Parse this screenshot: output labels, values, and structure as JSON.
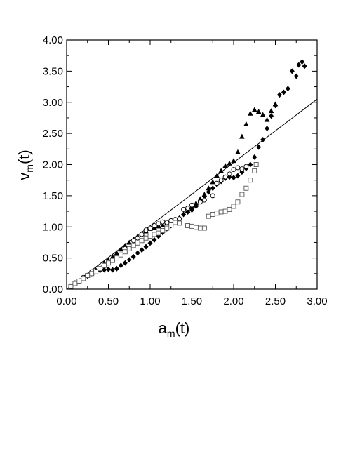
{
  "chart_data": {
    "type": "scatter",
    "title": "",
    "xlabel_main": "a",
    "xlabel_sub": "m",
    "xlabel_tail": "(t)",
    "ylabel_main": "v",
    "ylabel_sub": "m",
    "ylabel_tail": "(t)",
    "xlim": [
      0,
      3
    ],
    "ylim": [
      0,
      4
    ],
    "x_ticks": [
      "0.00",
      "0.50",
      "1.00",
      "1.50",
      "2.00",
      "2.50",
      "3.00"
    ],
    "y_ticks": [
      "0.00",
      "0.50",
      "1.00",
      "1.50",
      "2.00",
      "2.50",
      "3.00",
      "3.50",
      "4.00"
    ],
    "grid": false,
    "reference_line": {
      "x": [
        0,
        3.0
      ],
      "y": [
        0,
        3.05
      ]
    },
    "series": [
      {
        "marker": "diamond-filled",
        "points": [
          [
            0.05,
            0.04
          ],
          [
            0.1,
            0.09
          ],
          [
            0.15,
            0.13
          ],
          [
            0.2,
            0.17
          ],
          [
            0.25,
            0.21
          ],
          [
            0.3,
            0.25
          ],
          [
            0.35,
            0.28
          ],
          [
            0.4,
            0.3
          ],
          [
            0.45,
            0.31
          ],
          [
            0.5,
            0.32
          ],
          [
            0.55,
            0.31
          ],
          [
            0.6,
            0.33
          ],
          [
            0.65,
            0.38
          ],
          [
            0.7,
            0.42
          ],
          [
            0.75,
            0.47
          ],
          [
            0.8,
            0.52
          ],
          [
            0.85,
            0.58
          ],
          [
            0.9,
            0.63
          ],
          [
            0.95,
            0.68
          ],
          [
            1.0,
            0.74
          ],
          [
            1.05,
            0.79
          ],
          [
            1.1,
            0.85
          ],
          [
            1.15,
            0.91
          ],
          [
            1.2,
            0.97
          ],
          [
            1.25,
            1.02
          ],
          [
            1.3,
            1.08
          ],
          [
            1.35,
            1.14
          ],
          [
            1.4,
            1.2
          ],
          [
            1.45,
            1.24
          ],
          [
            1.5,
            1.27
          ],
          [
            1.55,
            1.33
          ],
          [
            1.6,
            1.41
          ],
          [
            1.65,
            1.49
          ],
          [
            1.7,
            1.56
          ],
          [
            1.75,
            1.62
          ],
          [
            1.8,
            1.68
          ],
          [
            1.85,
            1.73
          ],
          [
            1.9,
            1.78
          ],
          [
            1.95,
            1.8
          ],
          [
            2.0,
            1.79
          ],
          [
            2.05,
            1.82
          ],
          [
            2.1,
            1.88
          ],
          [
            2.15,
            1.94
          ],
          [
            2.2,
            2.0
          ],
          [
            2.25,
            2.12
          ],
          [
            2.3,
            2.28
          ],
          [
            2.35,
            2.4
          ],
          [
            2.4,
            2.58
          ],
          [
            2.45,
            2.78
          ],
          [
            2.5,
            2.95
          ],
          [
            2.55,
            3.12
          ],
          [
            2.6,
            3.16
          ],
          [
            2.65,
            3.22
          ],
          [
            2.7,
            3.5
          ],
          [
            2.75,
            3.42
          ],
          [
            2.78,
            3.6
          ],
          [
            2.82,
            3.65
          ],
          [
            2.85,
            3.58
          ]
        ]
      },
      {
        "marker": "triangle-filled",
        "points": [
          [
            0.05,
            0.05
          ],
          [
            0.1,
            0.1
          ],
          [
            0.15,
            0.14
          ],
          [
            0.2,
            0.18
          ],
          [
            0.25,
            0.22
          ],
          [
            0.3,
            0.26
          ],
          [
            0.35,
            0.31
          ],
          [
            0.4,
            0.36
          ],
          [
            0.45,
            0.42
          ],
          [
            0.5,
            0.47
          ],
          [
            0.55,
            0.52
          ],
          [
            0.6,
            0.58
          ],
          [
            0.65,
            0.64
          ],
          [
            0.7,
            0.7
          ],
          [
            0.75,
            0.75
          ],
          [
            0.8,
            0.8
          ],
          [
            0.85,
            0.85
          ],
          [
            0.9,
            0.89
          ],
          [
            0.95,
            0.93
          ],
          [
            1.0,
            0.97
          ],
          [
            1.05,
            0.99
          ],
          [
            1.1,
            1.01
          ],
          [
            1.15,
            1.03
          ],
          [
            1.2,
            1.06
          ],
          [
            1.25,
            1.09
          ],
          [
            1.3,
            1.12
          ],
          [
            1.45,
            1.26
          ],
          [
            1.5,
            1.32
          ],
          [
            1.55,
            1.38
          ],
          [
            1.6,
            1.45
          ],
          [
            1.65,
            1.52
          ],
          [
            1.7,
            1.62
          ],
          [
            1.75,
            1.72
          ],
          [
            1.8,
            1.82
          ],
          [
            1.85,
            1.9
          ],
          [
            1.9,
            1.98
          ],
          [
            1.95,
            2.02
          ],
          [
            2.0,
            2.06
          ],
          [
            2.05,
            2.2
          ],
          [
            2.1,
            2.45
          ],
          [
            2.15,
            2.65
          ],
          [
            2.2,
            2.82
          ],
          [
            2.25,
            2.88
          ],
          [
            2.3,
            2.85
          ],
          [
            2.35,
            2.8
          ],
          [
            2.4,
            2.72
          ],
          [
            2.45,
            2.86
          ],
          [
            2.5,
            2.97
          ]
        ]
      },
      {
        "marker": "circle-open",
        "points": [
          [
            0.1,
            0.1
          ],
          [
            0.2,
            0.19
          ],
          [
            0.3,
            0.28
          ],
          [
            0.4,
            0.36
          ],
          [
            0.5,
            0.44
          ],
          [
            0.6,
            0.52
          ],
          [
            0.7,
            0.65
          ],
          [
            0.8,
            0.78
          ],
          [
            0.85,
            0.82
          ],
          [
            0.9,
            0.88
          ],
          [
            0.95,
            0.95
          ],
          [
            1.0,
            0.98
          ],
          [
            1.05,
            1.02
          ],
          [
            1.1,
            1.05
          ],
          [
            1.15,
            1.08
          ],
          [
            1.2,
            1.07
          ],
          [
            1.25,
            1.1
          ],
          [
            1.3,
            1.12
          ],
          [
            1.35,
            1.13
          ],
          [
            1.4,
            1.28
          ],
          [
            1.45,
            1.3
          ],
          [
            1.5,
            1.35
          ],
          [
            1.6,
            1.4
          ],
          [
            1.65,
            1.43
          ],
          [
            1.75,
            1.5
          ],
          [
            1.8,
            1.7
          ],
          [
            1.85,
            1.75
          ],
          [
            1.9,
            1.8
          ],
          [
            1.95,
            1.85
          ],
          [
            2.0,
            1.92
          ],
          [
            2.05,
            1.95
          ],
          [
            2.1,
            1.93
          ],
          [
            2.15,
            1.97
          ]
        ]
      },
      {
        "marker": "square-open",
        "points": [
          [
            0.05,
            0.04
          ],
          [
            0.1,
            0.09
          ],
          [
            0.15,
            0.13
          ],
          [
            0.2,
            0.17
          ],
          [
            0.25,
            0.22
          ],
          [
            0.3,
            0.25
          ],
          [
            0.35,
            0.28
          ],
          [
            0.4,
            0.33
          ],
          [
            0.45,
            0.38
          ],
          [
            0.5,
            0.42
          ],
          [
            0.55,
            0.46
          ],
          [
            0.6,
            0.5
          ],
          [
            0.65,
            0.55
          ],
          [
            0.7,
            0.6
          ],
          [
            0.75,
            0.65
          ],
          [
            0.8,
            0.7
          ],
          [
            0.85,
            0.74
          ],
          [
            0.9,
            0.78
          ],
          [
            0.95,
            0.82
          ],
          [
            1.0,
            0.85
          ],
          [
            1.05,
            0.88
          ],
          [
            1.1,
            0.9
          ],
          [
            1.15,
            0.94
          ],
          [
            1.2,
            0.98
          ],
          [
            1.25,
            1.03
          ],
          [
            1.3,
            1.07
          ],
          [
            1.35,
            1.06
          ],
          [
            1.45,
            1.02
          ],
          [
            1.5,
            1.01
          ],
          [
            1.55,
            0.99
          ],
          [
            1.6,
            0.98
          ],
          [
            1.65,
            0.98
          ],
          [
            1.7,
            1.17
          ],
          [
            1.75,
            1.2
          ],
          [
            1.8,
            1.22
          ],
          [
            1.85,
            1.24
          ],
          [
            1.9,
            1.25
          ],
          [
            1.95,
            1.28
          ],
          [
            2.0,
            1.33
          ],
          [
            2.05,
            1.4
          ],
          [
            2.1,
            1.52
          ],
          [
            2.15,
            1.62
          ],
          [
            2.2,
            1.75
          ],
          [
            2.25,
            1.9
          ],
          [
            2.27,
            2.0
          ]
        ]
      }
    ]
  }
}
